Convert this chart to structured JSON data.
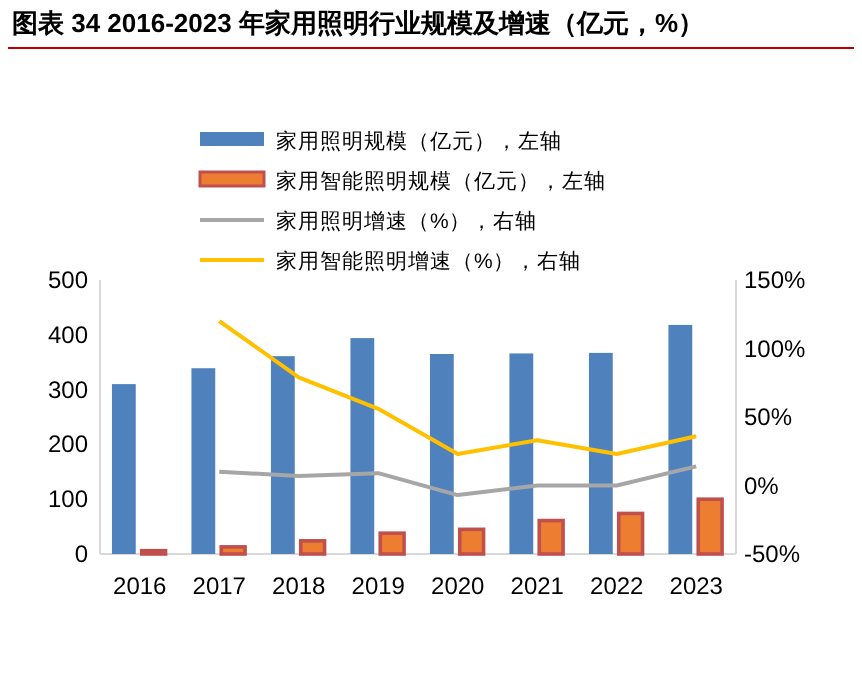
{
  "chart_data": {
    "type": "bar",
    "title": "图表 34 2016-2023 年家用照明行业规模及增速（亿元，%）",
    "categories": [
      "2016",
      "2017",
      "2018",
      "2019",
      "2020",
      "2021",
      "2022",
      "2023"
    ],
    "series": [
      {
        "name": "家用照明规模（亿元），左轴",
        "color": "#4f81bd",
        "values": [
          310,
          339,
          361,
          394,
          365,
          366,
          367,
          418
        ]
      },
      {
        "name": "家用智能照明规模（亿元），左轴",
        "color": "#ed7d31",
        "values": [
          6,
          13,
          24,
          38,
          45,
          61,
          74,
          100
        ]
      },
      {
        "name": "家用照明增速（%），右轴",
        "type": "line",
        "axis": "y2",
        "color": "#a6a6a6",
        "values": [
          null,
          10,
          7,
          9,
          -7,
          0,
          0,
          14
        ]
      },
      {
        "name": "家用智能照明增速（%），右轴",
        "type": "line",
        "axis": "y2",
        "color": "#ffc000",
        "values": [
          null,
          120,
          79,
          56,
          23,
          33,
          23,
          36
        ]
      }
    ],
    "ylim": [
      0,
      500
    ],
    "yticks": [
      0,
      100,
      200,
      300,
      400,
      500
    ],
    "y2lim": [
      -50,
      150
    ],
    "y2ticks": [
      {
        "value": -50,
        "label": "-50%"
      },
      {
        "value": 0,
        "label": "0%"
      },
      {
        "value": 50,
        "label": "50%"
      },
      {
        "value": 100,
        "label": "100%"
      },
      {
        "value": 150,
        "label": "150%"
      }
    ],
    "legend": "top"
  }
}
